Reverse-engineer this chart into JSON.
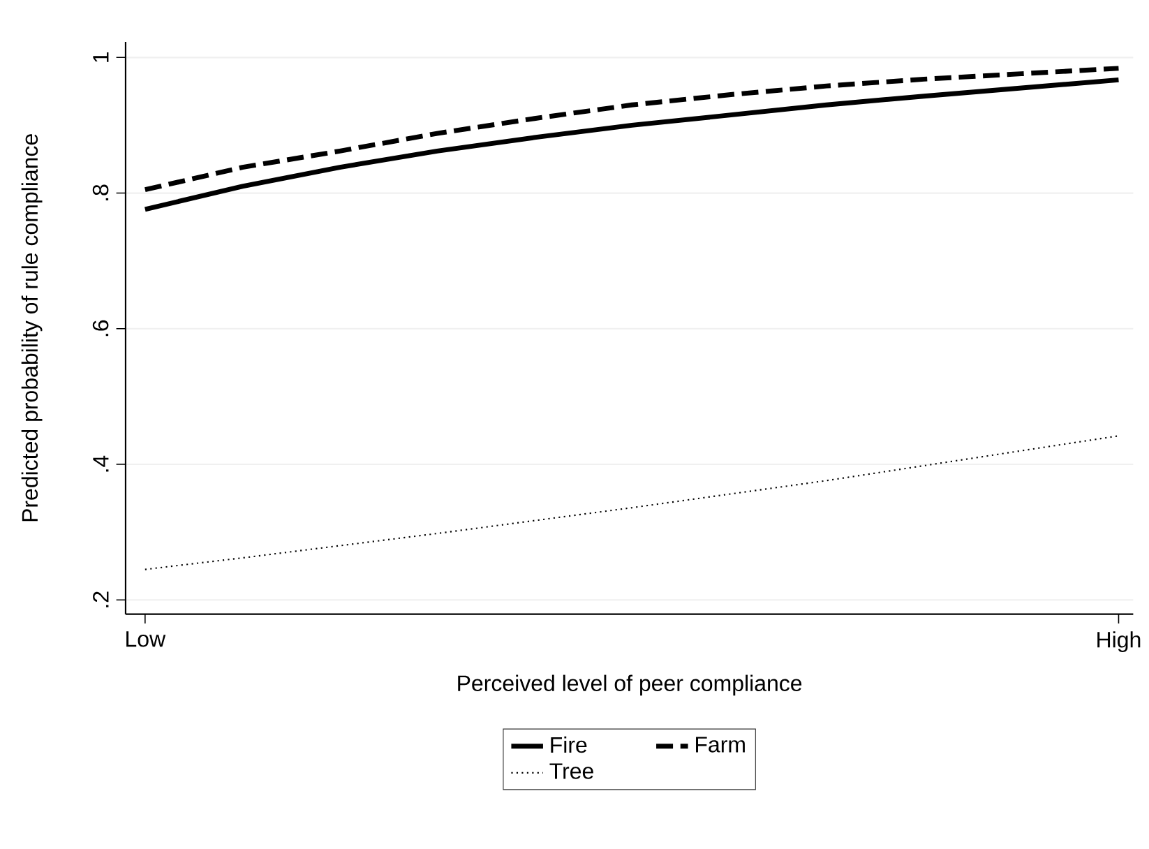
{
  "chart_data": {
    "type": "line",
    "xlabel": "Perceived level of peer compliance",
    "ylabel": "Predicted probability of rule compliance",
    "categories": [
      "Low",
      null,
      null,
      null,
      null,
      null,
      null,
      null,
      null,
      null,
      "High"
    ],
    "series": [
      {
        "name": "Fire",
        "color": "#000000",
        "line_style": "solid",
        "values": [
          0.776,
          0.81,
          0.838,
          0.862,
          0.882,
          0.9,
          0.915,
          0.93,
          0.943,
          0.955,
          0.967
        ]
      },
      {
        "name": "Farm",
        "color": "#000000",
        "line_style": "dashed",
        "values": [
          0.805,
          0.838,
          0.862,
          0.888,
          0.91,
          0.93,
          0.945,
          0.958,
          0.968,
          0.976,
          0.984
        ]
      },
      {
        "name": "Tree",
        "color": "#000000",
        "line_style": "dotted",
        "values": [
          0.245,
          0.262,
          0.28,
          0.298,
          0.317,
          0.336,
          0.356,
          0.376,
          0.398,
          0.42,
          0.442
        ]
      }
    ],
    "ylim": [
      0.179,
      1.023
    ],
    "yticks": [
      {
        "value": 0.2,
        "label": ".2"
      },
      {
        "value": 0.4,
        "label": ".4"
      },
      {
        "value": 0.6,
        "label": ".6"
      },
      {
        "value": 0.8,
        "label": ".8"
      },
      {
        "value": 1,
        "label": "1"
      }
    ],
    "grid": "y",
    "legend": "bottom",
    "marker": "none"
  }
}
